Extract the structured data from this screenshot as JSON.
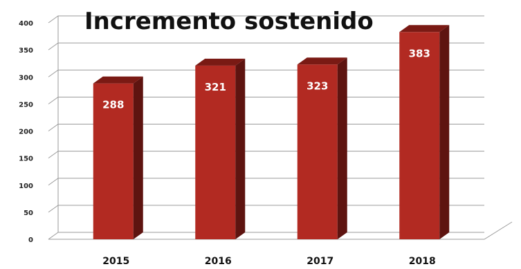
{
  "chart_data": {
    "type": "bar",
    "title": "Incremento sostenido",
    "categories": [
      "2015",
      "2016",
      "2017",
      "2018"
    ],
    "values": [
      288,
      321,
      323,
      383
    ],
    "data_labels": [
      "288",
      "321",
      "323",
      "383"
    ],
    "ylim": [
      0,
      400
    ],
    "yticks": [
      "0",
      "50",
      "100",
      "150",
      "200",
      "250",
      "300",
      "350",
      "400"
    ],
    "xlabel": "",
    "ylabel": "",
    "grid": true,
    "legend": "none",
    "style": "3d-columns"
  },
  "colors": {
    "bar_front": "#b22a22",
    "bar_side": "#5e1410",
    "bar_top": "#7a1a14",
    "grid": "#9a9a9a",
    "background": "#ffffff"
  }
}
